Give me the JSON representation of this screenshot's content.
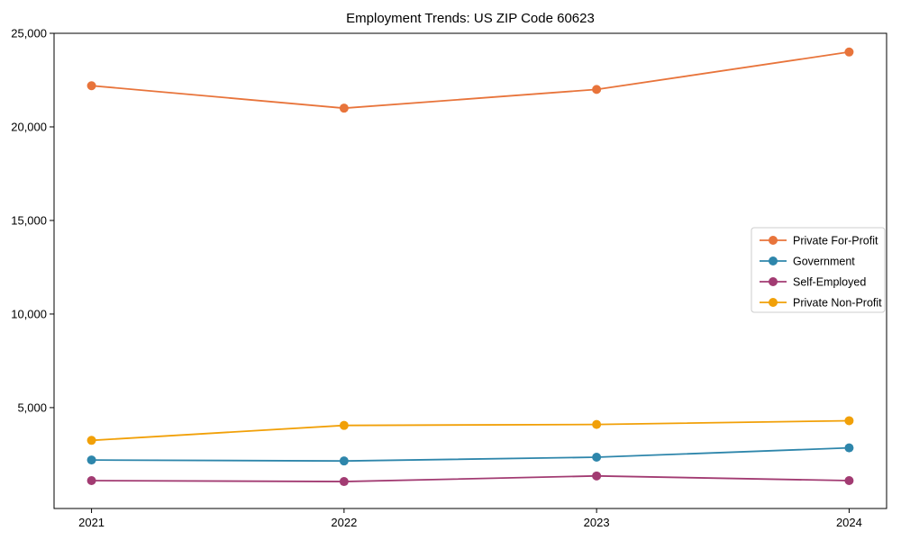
{
  "chart_data": {
    "type": "line",
    "title": "Employment Trends: US ZIP Code 60623",
    "xlabel": "",
    "ylabel": "",
    "x": [
      2021,
      2022,
      2023,
      2024
    ],
    "x_labels": [
      "2021",
      "2022",
      "2023",
      "2024"
    ],
    "series": [
      {
        "name": "Private For-Profit",
        "color": "#E8743B",
        "values": [
          22200,
          21000,
          22000,
          24000
        ]
      },
      {
        "name": "Government",
        "color": "#2E86AB",
        "values": [
          2200,
          2150,
          2350,
          2850
        ]
      },
      {
        "name": "Self-Employed",
        "color": "#A23B72",
        "values": [
          1100,
          1050,
          1350,
          1100
        ]
      },
      {
        "name": "Private Non-Profit",
        "color": "#F1A008",
        "values": [
          3250,
          4050,
          4100,
          4300
        ]
      }
    ],
    "ylim": [
      -390,
      25000
    ],
    "yticks": [
      5000,
      10000,
      15000,
      20000,
      25000
    ],
    "ytick_labels": [
      "5,000",
      "10,000",
      "15,000",
      "20,000",
      "25,000"
    ],
    "grid": false,
    "legend_position": "center right",
    "marker": "circle",
    "background_color": "#ffffff",
    "axis_color": "#000000",
    "legend_border_color": "#cccccc"
  }
}
